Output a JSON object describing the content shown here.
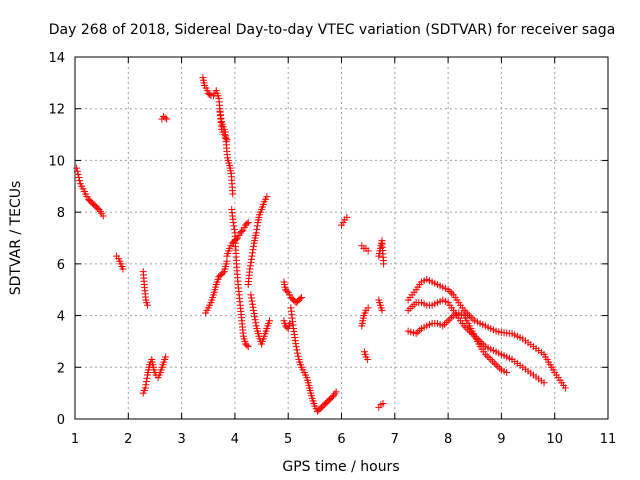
{
  "chart_data": {
    "type": "scatter",
    "title": "Day 268 of 2018, Sidereal Day-to-day VTEC variation (SDTVAR) for receiver saga",
    "xlabel": "GPS time / hours",
    "ylabel": "SDTVAR / TECUs",
    "xlim": [
      1,
      11
    ],
    "ylim": [
      0,
      14
    ],
    "xticks": [
      1,
      2,
      3,
      4,
      5,
      6,
      7,
      8,
      9,
      10,
      11
    ],
    "yticks": [
      0,
      2,
      4,
      6,
      8,
      10,
      12,
      14
    ],
    "grid": true,
    "marker": "+",
    "color": "#ff0000",
    "segments": [
      {
        "x": [
          1.03,
          1.1,
          1.15,
          1.2,
          1.25,
          1.3,
          1.35,
          1.4,
          1.45,
          1.5,
          1.53
        ],
        "y": [
          9.7,
          9.1,
          8.9,
          8.7,
          8.5,
          8.4,
          8.3,
          8.2,
          8.1,
          7.95,
          7.85
        ]
      },
      {
        "x": [
          1.78,
          1.82,
          1.86,
          1.9
        ],
        "y": [
          6.3,
          6.2,
          6.0,
          5.8
        ]
      },
      {
        "x": [
          2.28,
          2.3,
          2.33,
          2.36
        ],
        "y": [
          5.7,
          5.2,
          4.6,
          4.4
        ]
      },
      {
        "x": [
          2.28,
          2.32,
          2.36,
          2.4,
          2.44,
          2.48,
          2.52,
          2.56,
          2.6,
          2.65,
          2.7
        ],
        "y": [
          1.0,
          1.2,
          1.7,
          2.1,
          2.3,
          1.9,
          1.7,
          1.6,
          1.8,
          2.1,
          2.4
        ]
      },
      {
        "x": [
          2.63,
          2.66,
          2.69,
          2.72
        ],
        "y": [
          11.6,
          11.7,
          11.65,
          11.6
        ]
      },
      {
        "x": [
          3.4,
          3.43,
          3.46,
          3.5,
          3.55,
          3.6,
          3.65,
          3.7,
          3.75,
          3.8,
          3.85
        ],
        "y": [
          13.2,
          12.9,
          12.8,
          12.6,
          12.5,
          12.5,
          12.7,
          12.4,
          11.2,
          11.0,
          10.8
        ]
      },
      {
        "x": [
          3.72,
          3.75,
          3.78,
          3.82,
          3.86,
          3.9,
          3.93,
          3.96
        ],
        "y": [
          11.9,
          11.5,
          11.3,
          11.1,
          10.1,
          9.8,
          9.5,
          8.7
        ]
      },
      {
        "x": [
          3.94,
          3.97,
          4.0,
          4.03,
          4.06,
          4.1,
          4.13,
          4.16,
          4.2,
          4.25
        ],
        "y": [
          8.1,
          7.6,
          7.2,
          6.0,
          5.2,
          4.4,
          3.8,
          3.2,
          2.9,
          2.8
        ]
      },
      {
        "x": [
          3.45,
          3.5,
          3.55,
          3.6,
          3.65,
          3.7,
          3.75,
          3.8,
          3.85
        ],
        "y": [
          4.1,
          4.3,
          4.5,
          4.8,
          5.2,
          5.5,
          5.6,
          5.7,
          6.1
        ]
      },
      {
        "x": [
          3.85,
          3.9,
          3.95,
          4.0,
          4.05,
          4.1,
          4.15,
          4.2,
          4.25
        ],
        "y": [
          6.3,
          6.6,
          6.8,
          6.9,
          7.0,
          7.2,
          7.3,
          7.5,
          7.6
        ]
      },
      {
        "x": [
          4.25,
          4.28,
          4.32,
          4.36,
          4.4,
          4.43,
          4.46,
          4.5,
          4.55,
          4.6
        ],
        "y": [
          5.2,
          5.8,
          6.3,
          6.8,
          7.2,
          7.6,
          7.9,
          8.1,
          8.4,
          8.6
        ]
      },
      {
        "x": [
          4.3,
          4.35,
          4.4,
          4.45,
          4.5,
          4.55,
          4.6,
          4.65
        ],
        "y": [
          4.8,
          4.2,
          3.6,
          3.2,
          2.9,
          3.2,
          3.5,
          3.8
        ]
      },
      {
        "x": [
          4.92,
          4.95,
          5.0,
          5.05,
          5.1,
          5.15,
          5.2,
          5.25
        ],
        "y": [
          5.3,
          5.0,
          4.9,
          4.7,
          4.6,
          4.5,
          4.6,
          4.7
        ]
      },
      {
        "x": [
          4.92,
          4.95,
          5.0,
          5.03
        ],
        "y": [
          3.8,
          3.6,
          3.5,
          3.7
        ]
      },
      {
        "x": [
          5.05,
          5.1,
          5.15,
          5.2,
          5.25,
          5.3,
          5.35,
          5.4,
          5.45,
          5.5,
          5.55
        ],
        "y": [
          4.3,
          3.5,
          2.8,
          2.3,
          2.0,
          1.8,
          1.6,
          1.2,
          0.8,
          0.5,
          0.3
        ]
      },
      {
        "x": [
          5.55,
          5.6,
          5.65,
          5.7,
          5.75,
          5.8,
          5.85,
          5.9
        ],
        "y": [
          0.3,
          0.4,
          0.5,
          0.6,
          0.7,
          0.8,
          0.9,
          1.05
        ]
      },
      {
        "x": [
          6.0,
          6.03,
          6.06,
          6.1
        ],
        "y": [
          7.5,
          7.6,
          7.7,
          7.8
        ]
      },
      {
        "x": [
          6.38,
          6.42,
          6.46,
          6.5
        ],
        "y": [
          6.7,
          6.6,
          6.6,
          6.5
        ]
      },
      {
        "x": [
          6.38,
          6.42,
          6.46,
          6.5
        ],
        "y": [
          3.6,
          4.0,
          4.2,
          4.3
        ]
      },
      {
        "x": [
          6.43,
          6.46,
          6.49
        ],
        "y": [
          2.6,
          2.4,
          2.3
        ]
      },
      {
        "x": [
          6.7,
          6.73,
          6.76,
          6.79
        ],
        "y": [
          6.3,
          6.6,
          6.9,
          6.0
        ]
      },
      {
        "x": [
          6.7,
          6.73,
          6.76
        ],
        "y": [
          4.6,
          4.4,
          4.2
        ]
      },
      {
        "x": [
          6.7,
          6.74,
          6.78
        ],
        "y": [
          0.45,
          0.55,
          0.6
        ]
      },
      {
        "x": [
          7.25,
          7.4,
          7.5,
          7.6,
          7.7,
          7.8,
          7.9,
          8.0,
          8.1,
          8.2,
          8.3,
          8.4,
          8.5,
          8.6,
          8.7,
          8.8,
          8.9,
          9.0,
          9.2,
          9.4,
          9.6,
          9.8,
          10.0,
          10.2
        ],
        "y": [
          4.6,
          5.0,
          5.3,
          5.4,
          5.3,
          5.2,
          5.1,
          5.0,
          4.8,
          4.5,
          4.2,
          4.0,
          3.8,
          3.7,
          3.6,
          3.5,
          3.4,
          3.35,
          3.3,
          3.1,
          2.8,
          2.5,
          1.8,
          1.2
        ]
      },
      {
        "x": [
          7.25,
          7.4,
          7.5,
          7.6,
          7.7,
          7.8,
          7.9,
          8.0,
          8.1,
          8.2,
          8.3,
          8.4,
          8.5,
          8.6,
          8.7,
          8.8,
          8.9,
          9.0,
          9.2,
          9.4,
          9.6,
          9.8
        ],
        "y": [
          4.2,
          4.5,
          4.5,
          4.4,
          4.4,
          4.5,
          4.6,
          4.5,
          4.2,
          3.9,
          3.6,
          3.4,
          3.2,
          3.0,
          2.8,
          2.7,
          2.6,
          2.5,
          2.3,
          2.0,
          1.7,
          1.4
        ]
      },
      {
        "x": [
          7.25,
          7.4,
          7.5,
          7.6,
          7.7,
          7.8,
          7.9,
          8.0,
          8.1,
          8.2,
          8.3,
          8.4,
          8.5,
          8.6,
          8.7,
          8.8,
          8.9,
          9.0,
          9.1
        ],
        "y": [
          3.4,
          3.3,
          3.5,
          3.6,
          3.7,
          3.7,
          3.6,
          3.8,
          4.0,
          4.1,
          4.0,
          3.6,
          3.2,
          2.8,
          2.5,
          2.3,
          2.1,
          1.9,
          1.8
        ]
      }
    ]
  }
}
